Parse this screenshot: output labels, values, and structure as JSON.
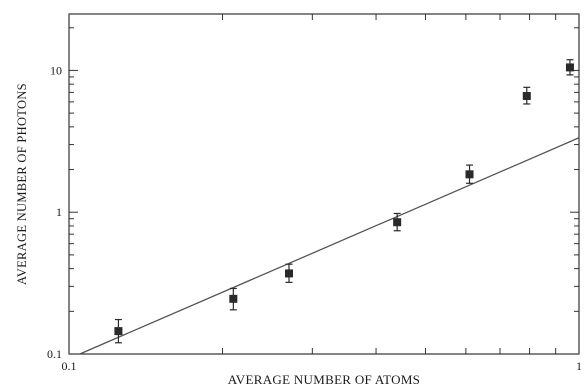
{
  "chart_data": {
    "type": "scatter",
    "title": "",
    "xlabel": "AVERAGE NUMBER OF ATOMS",
    "ylabel": "AVERAGE NUMBER OF PHOTONS",
    "xscale": "log",
    "yscale": "log",
    "xlim": [
      0.1,
      1
    ],
    "ylim": [
      0.1,
      25
    ],
    "grid": false,
    "legend": "none",
    "x_ticks": [
      {
        "value": 0.1,
        "label": "0.1"
      },
      {
        "value": 1,
        "label": "1"
      }
    ],
    "y_ticks": [
      {
        "value": 0.1,
        "label": "0.1"
      },
      {
        "value": 1,
        "label": "1"
      },
      {
        "value": 10,
        "label": "10"
      }
    ],
    "points": [
      {
        "x": 0.125,
        "y": 0.145,
        "ylow": 0.12,
        "yhigh": 0.175
      },
      {
        "x": 0.21,
        "y": 0.245,
        "ylow": 0.205,
        "yhigh": 0.29
      },
      {
        "x": 0.27,
        "y": 0.37,
        "ylow": 0.32,
        "yhigh": 0.43
      },
      {
        "x": 0.44,
        "y": 0.85,
        "ylow": 0.74,
        "yhigh": 0.98
      },
      {
        "x": 0.61,
        "y": 1.85,
        "ylow": 1.6,
        "yhigh": 2.15
      },
      {
        "x": 0.79,
        "y": 6.6,
        "ylow": 5.8,
        "yhigh": 7.6
      },
      {
        "x": 0.96,
        "y": 10.5,
        "ylow": 9.3,
        "yhigh": 11.9
      }
    ],
    "fit_line": {
      "x": [
        0.105,
        1.0
      ],
      "y": [
        0.1,
        3.35
      ]
    },
    "colors": {
      "axis": "#333333",
      "points": "#2a2a2a",
      "line": "#555555"
    }
  }
}
